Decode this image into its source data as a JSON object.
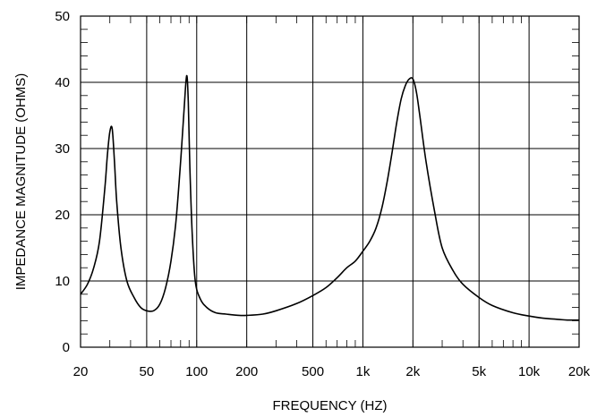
{
  "chart_data": {
    "type": "line",
    "title": "",
    "xlabel": "FREQUENCY  (HZ)",
    "ylabel": "IMPEDANCE MAGNITUDE  (OHMS)",
    "xscale": "log",
    "xlim": [
      20,
      20000
    ],
    "ylim": [
      0,
      50
    ],
    "grid": true,
    "xticks": [
      20,
      50,
      100,
      200,
      500,
      1000,
      2000,
      5000,
      10000,
      20000
    ],
    "xtick_labels": [
      "20",
      "50",
      "100",
      "200",
      "500",
      "1k",
      "2k",
      "5k",
      "10k",
      "20k"
    ],
    "yticks": [
      0,
      10,
      20,
      30,
      40,
      50
    ],
    "ytick_labels": [
      "0",
      "10",
      "20",
      "30",
      "40",
      "50"
    ],
    "series": [
      {
        "name": "",
        "color": "#000000",
        "x": [
          20,
          22,
          24,
          26,
          28,
          29,
          30,
          31,
          32,
          33,
          35,
          38,
          42,
          46,
          50,
          55,
          60,
          65,
          70,
          75,
          80,
          84,
          87,
          89,
          91,
          94,
          98,
          105,
          115,
          130,
          150,
          180,
          200,
          250,
          300,
          400,
          500,
          600,
          700,
          800,
          900,
          1000,
          1100,
          1200,
          1300,
          1400,
          1500,
          1600,
          1700,
          1800,
          1900,
          2000,
          2100,
          2200,
          2400,
          2700,
          3000,
          3500,
          4000,
          5000,
          6000,
          8000,
          10000,
          12000,
          15000,
          17000,
          20000
        ],
        "y": [
          8,
          9.5,
          12,
          16,
          24,
          29,
          32.5,
          33,
          28,
          22,
          15,
          10,
          7.5,
          6,
          5.5,
          5.5,
          6.5,
          9,
          13,
          19,
          28,
          36,
          41,
          37,
          27,
          17,
          10,
          7.3,
          6,
          5.2,
          5,
          4.8,
          4.8,
          5,
          5.5,
          6.6,
          7.8,
          9,
          10.5,
          12,
          13,
          14.5,
          16,
          18,
          21,
          25,
          29.5,
          34,
          37.5,
          39.5,
          40.5,
          40.5,
          38.5,
          35,
          28,
          20.5,
          15,
          11.5,
          9.5,
          7.5,
          6.3,
          5.2,
          4.7,
          4.4,
          4.2,
          4.1,
          4.1
        ]
      }
    ]
  }
}
